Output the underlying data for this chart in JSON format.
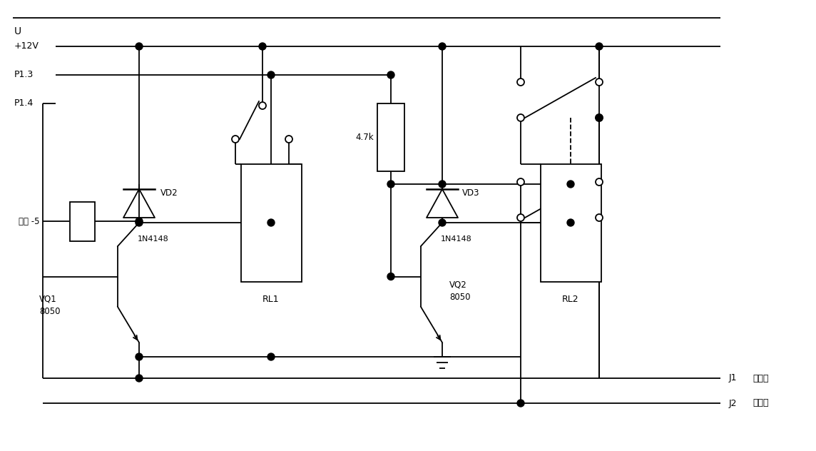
{
  "bg_color": "#ffffff",
  "line_color": "#000000",
  "text_color": "#000000",
  "fig_width": 11.44,
  "fig_height": 6.32,
  "labels": {
    "U": "U",
    "plus12V": "+12V",
    "P13": "P1.3",
    "P14": "P1.4",
    "resistor_label": "电阱 -5",
    "VD2": "VD2",
    "VD2_part": "1N4148",
    "VQ1": "VQ1",
    "VQ1_part": "8050",
    "RL1": "RL1",
    "resistor2_label": "4.7k",
    "VD3": "VD3",
    "VD3_part": "1N4148",
    "VQ2": "VQ2",
    "VQ2_part": "8050",
    "RL2": "RL2",
    "J1": "J1",
    "J1_label": "半导体",
    "J2": "J2",
    "J2_label": "制冷片"
  }
}
